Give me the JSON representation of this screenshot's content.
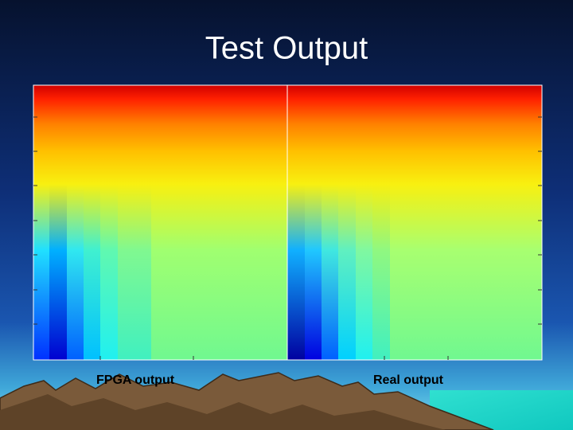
{
  "header": {
    "title": "Test Output"
  },
  "panels": [
    {
      "label": "FPGA output"
    },
    {
      "label": "Real output"
    }
  ]
}
